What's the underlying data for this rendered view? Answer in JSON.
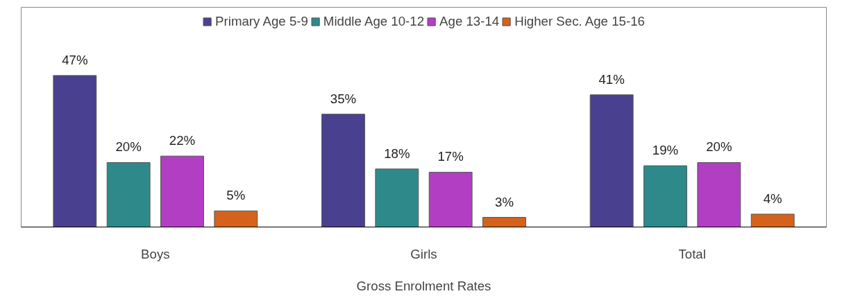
{
  "chart_data": {
    "type": "bar",
    "categories": [
      "Boys",
      "Girls",
      "Total"
    ],
    "xlabel": "Gross Enrolment Rates",
    "legend": "top",
    "series": [
      {
        "name": "Primary Age 5-9",
        "color": "#4a4090",
        "values": [
          47,
          35,
          41
        ],
        "value_labels": [
          "47%",
          "35%",
          "41%"
        ]
      },
      {
        "name": "Middle Age 10-12",
        "color": "#2e8a8a",
        "values": [
          20,
          18,
          19
        ],
        "value_labels": [
          "20%",
          "18%",
          "19%"
        ]
      },
      {
        "name": "Age 13-14",
        "color": "#b23ec4",
        "values": [
          22,
          17,
          20
        ],
        "value_labels": [
          "22%",
          "17%",
          "20%"
        ]
      },
      {
        "name": "Higher Sec. Age 15-16",
        "color": "#d5621c",
        "values": [
          5,
          3,
          4
        ],
        "value_labels": [
          "5%",
          "3%",
          "4%"
        ]
      }
    ]
  }
}
